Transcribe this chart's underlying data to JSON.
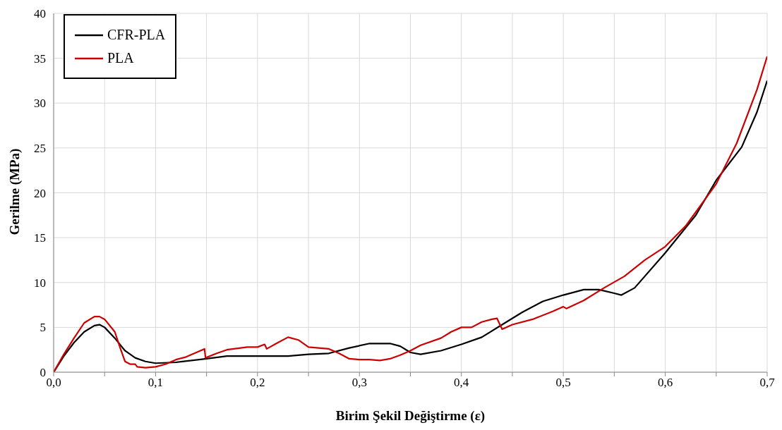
{
  "chart_data": {
    "type": "line",
    "xlabel": "Birim Şekil Değiştirme (ε)",
    "ylabel": "Gerilme (MPa)",
    "xlim": [
      0,
      0.7
    ],
    "ylim": [
      0,
      40
    ],
    "xticks": [
      {
        "value": 0,
        "label": "0,0"
      },
      {
        "value": 0.05,
        "label": null
      },
      {
        "value": 0.1,
        "label": "0,1"
      },
      {
        "value": 0.15,
        "label": null
      },
      {
        "value": 0.2,
        "label": "0,2"
      },
      {
        "value": 0.25,
        "label": null
      },
      {
        "value": 0.3,
        "label": "0,3"
      },
      {
        "value": 0.35,
        "label": null
      },
      {
        "value": 0.4,
        "label": "0,4"
      },
      {
        "value": 0.45,
        "label": null
      },
      {
        "value": 0.5,
        "label": "0,5"
      },
      {
        "value": 0.55,
        "label": null
      },
      {
        "value": 0.6,
        "label": "0,6"
      },
      {
        "value": 0.65,
        "label": null
      },
      {
        "value": 0.7,
        "label": "0,7"
      }
    ],
    "yticks": [
      0,
      5,
      10,
      15,
      20,
      25,
      30,
      35,
      40
    ],
    "grid": true,
    "legend": "top left",
    "marker": "none",
    "line_style": "solid",
    "series": [
      {
        "name": "CFR-PLA",
        "color": "#000000",
        "x": [
          0,
          0.01,
          0.02,
          0.03,
          0.04,
          0.045,
          0.05,
          0.06,
          0.07,
          0.08,
          0.09,
          0.1,
          0.12,
          0.15,
          0.17,
          0.2,
          0.23,
          0.25,
          0.27,
          0.29,
          0.31,
          0.33,
          0.34,
          0.35,
          0.36,
          0.38,
          0.4,
          0.42,
          0.44,
          0.46,
          0.48,
          0.5,
          0.52,
          0.535,
          0.55,
          0.557,
          0.57,
          0.6,
          0.63,
          0.65,
          0.675,
          0.69,
          0.7
        ],
        "values": [
          0,
          1.8,
          3.3,
          4.5,
          5.2,
          5.3,
          5.0,
          3.8,
          2.4,
          1.6,
          1.2,
          1.0,
          1.1,
          1.5,
          1.8,
          1.8,
          1.8,
          2.0,
          2.1,
          2.7,
          3.2,
          3.2,
          2.9,
          2.2,
          2.0,
          2.4,
          3.1,
          3.9,
          5.3,
          6.7,
          7.9,
          8.6,
          9.2,
          9.2,
          8.8,
          8.6,
          9.4,
          13.3,
          17.5,
          21.4,
          25.1,
          29,
          32.5
        ]
      },
      {
        "name": "PLA",
        "color": "#cc0000",
        "x": [
          0,
          0.01,
          0.02,
          0.03,
          0.04,
          0.045,
          0.05,
          0.06,
          0.065,
          0.07,
          0.075,
          0.08,
          0.082,
          0.09,
          0.1,
          0.11,
          0.12,
          0.13,
          0.14,
          0.148,
          0.149,
          0.16,
          0.17,
          0.19,
          0.2,
          0.207,
          0.209,
          0.22,
          0.23,
          0.24,
          0.25,
          0.27,
          0.28,
          0.29,
          0.3,
          0.31,
          0.32,
          0.33,
          0.34,
          0.35,
          0.36,
          0.38,
          0.39,
          0.4,
          0.41,
          0.42,
          0.43,
          0.435,
          0.437,
          0.44,
          0.45,
          0.47,
          0.49,
          0.5,
          0.503,
          0.52,
          0.54,
          0.56,
          0.58,
          0.6,
          0.62,
          0.65,
          0.67,
          0.69,
          0.7
        ],
        "values": [
          0,
          2,
          3.8,
          5.5,
          6.2,
          6.2,
          5.9,
          4.5,
          2.8,
          1.2,
          0.9,
          0.9,
          0.6,
          0.5,
          0.6,
          0.9,
          1.4,
          1.7,
          2.2,
          2.6,
          1.6,
          2.1,
          2.5,
          2.8,
          2.8,
          3.1,
          2.6,
          3.3,
          3.9,
          3.6,
          2.8,
          2.6,
          2.1,
          1.5,
          1.4,
          1.4,
          1.3,
          1.5,
          1.9,
          2.4,
          3.0,
          3.8,
          4.5,
          5.0,
          5.0,
          5.6,
          5.9,
          6.0,
          5.5,
          4.8,
          5.3,
          5.9,
          6.8,
          7.3,
          7.1,
          8.0,
          9.4,
          10.7,
          12.5,
          14.0,
          16.3,
          21,
          25.5,
          31.5,
          35.2
        ]
      }
    ]
  }
}
